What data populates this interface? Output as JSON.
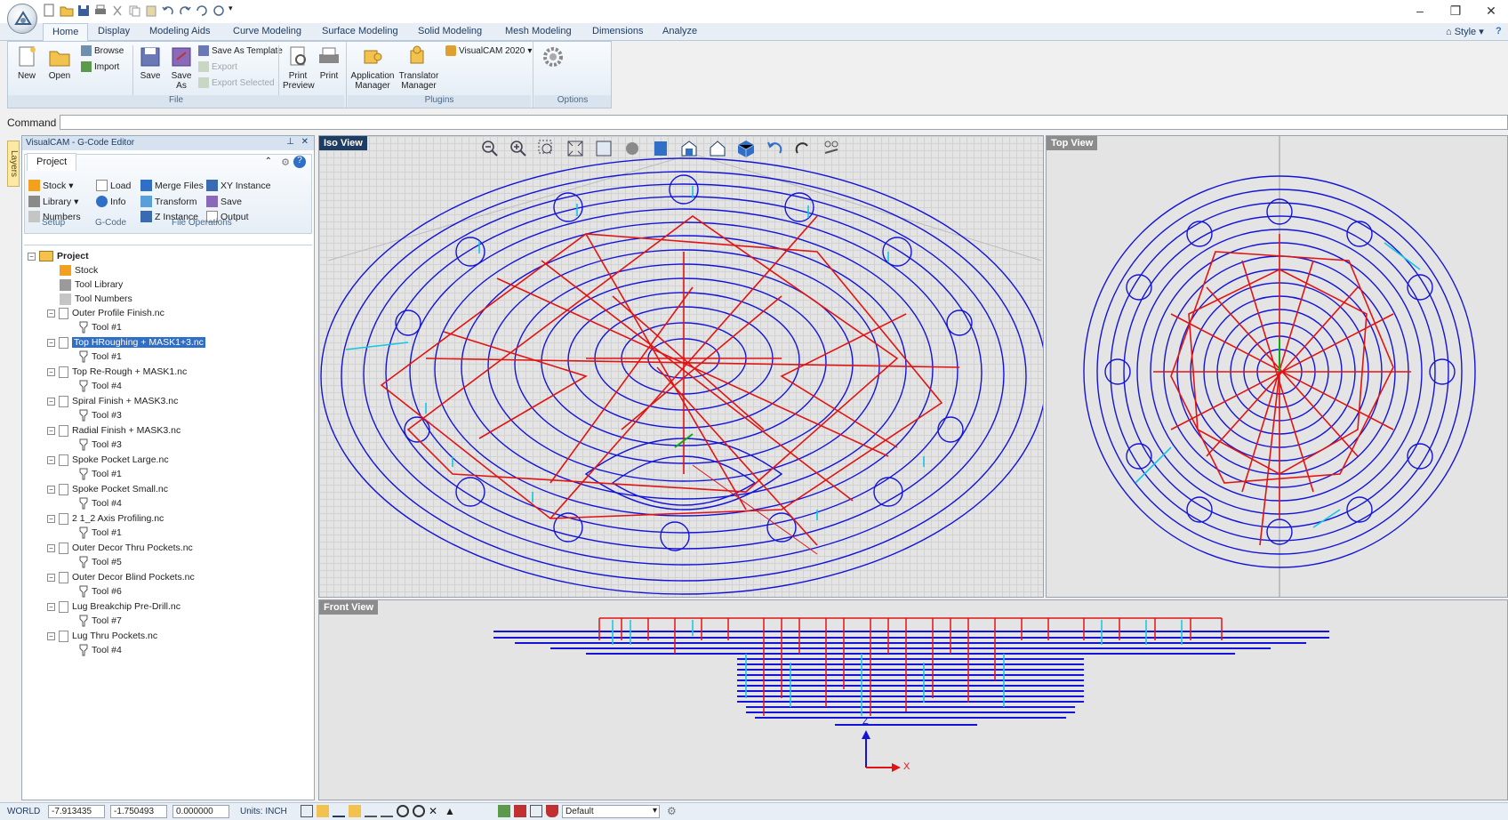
{
  "app": {
    "style_label": "Style"
  },
  "tabs": [
    "Home",
    "Display",
    "Modeling Aids",
    "Curve Modeling",
    "Surface Modeling",
    "Solid Modeling",
    "Mesh Modeling",
    "Dimensions",
    "Analyze"
  ],
  "ribbon": {
    "new": "New",
    "open": "Open",
    "browse": "Browse",
    "import": "Import",
    "save": "Save",
    "save_as": "Save As",
    "save_as_template": "Save As Template",
    "export": "Export",
    "export_selected": "Export Selected",
    "print_preview": "Print Preview",
    "print": "Print",
    "file_group": "File",
    "app_manager": "Application Manager",
    "translator_manager": "Translator Manager",
    "visualcam_2020": "VisualCAM 2020",
    "plugins_group": "Plugins",
    "options_group": "Options"
  },
  "command": {
    "label": "Command",
    "value": ""
  },
  "layers_tab": "Layers",
  "panel": {
    "title": "VisualCAM - G-Code Editor",
    "project_tab": "Project",
    "stock": "Stock",
    "library": "Library",
    "numbers": "Numbers",
    "load": "Load",
    "info": "Info",
    "merge_files": "Merge Files",
    "transform": "Transform",
    "z_instance": "Z Instance",
    "xy_instance": "XY Instance",
    "save": "Save",
    "output": "Output",
    "group_setup": "Setup",
    "group_gcode": "G-Code",
    "group_file_ops": "File Operations"
  },
  "tree": {
    "root": "Project",
    "stock": "Stock",
    "tool_library": "Tool Library",
    "tool_numbers": "Tool Numbers",
    "files": [
      {
        "name": "Outer Profile Finish.nc",
        "tool": "Tool #1"
      },
      {
        "name": "Top HRoughing + MASK1+3.nc",
        "tool": "Tool #1"
      },
      {
        "name": "Top Re-Rough + MASK1.nc",
        "tool": "Tool #4"
      },
      {
        "name": "Spiral Finish + MASK3.nc",
        "tool": "Tool #3"
      },
      {
        "name": "Radial Finish + MASK3.nc",
        "tool": "Tool #3"
      },
      {
        "name": "Spoke Pocket Large.nc",
        "tool": "Tool #1"
      },
      {
        "name": "Spoke Pocket Small.nc",
        "tool": "Tool #4"
      },
      {
        "name": "2 1_2 Axis Profiling.nc",
        "tool": "Tool #1"
      },
      {
        "name": "Outer Decor Thru Pockets.nc",
        "tool": "Tool #5"
      },
      {
        "name": "Outer Decor Blind Pockets.nc",
        "tool": "Tool #6"
      },
      {
        "name": "Lug Breakchip Pre-Drill.nc",
        "tool": "Tool #7"
      },
      {
        "name": "Lug Thru Pockets.nc",
        "tool": "Tool #4"
      }
    ]
  },
  "views": {
    "iso": "Iso View",
    "top": "Top View",
    "front": "Front View",
    "axis_z": "Z",
    "axis_x": "X"
  },
  "status": {
    "world": "WORLD",
    "x": "-7.913435",
    "y": "-1.750493",
    "z": "0.000000",
    "units": "Units: INCH",
    "layer": "Default"
  },
  "colors": {
    "path_blue": "#1414d8",
    "path_red": "#e01414",
    "path_cyan": "#12c6e6",
    "accent": "#1e3d63"
  }
}
